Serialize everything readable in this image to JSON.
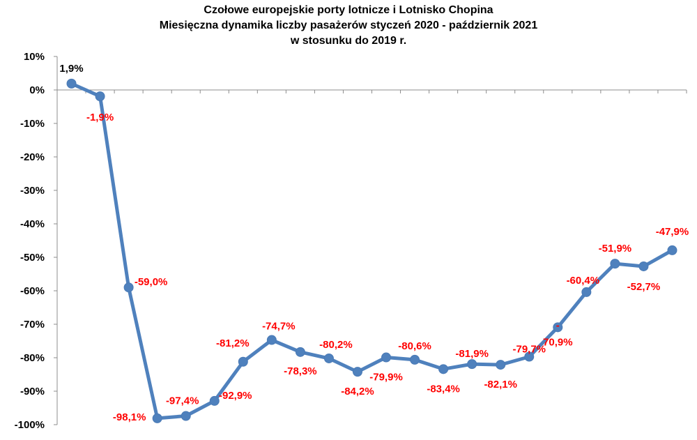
{
  "chart_data": {
    "type": "line",
    "title_lines": [
      "Czołowe europejskie porty lotnicze i Lotnisko Chopina",
      "Miesięczna dynamika liczby pasażerów styczeń 2020 - październik 2021",
      "w stosunku do 2019 r."
    ],
    "ylim": [
      -100,
      10
    ],
    "y_ticks": [
      10,
      0,
      -10,
      -20,
      -30,
      -40,
      -50,
      -60,
      -70,
      -80,
      -90,
      -100
    ],
    "y_tick_labels": [
      "10%",
      "0%",
      "-10%",
      "-20%",
      "-30%",
      "-40%",
      "-50%",
      "-60%",
      "-70%",
      "-80%",
      "-90%",
      "-100%"
    ],
    "grid": false,
    "series": [
      {
        "values": [
          1.9,
          -1.9,
          -59.0,
          -98.1,
          -97.4,
          -92.9,
          -81.2,
          -74.7,
          -78.3,
          -80.2,
          -84.2,
          -79.9,
          -80.6,
          -83.4,
          -81.9,
          -82.1,
          -79.7,
          -70.9,
          -60.4,
          -51.9,
          -52.7,
          -47.9
        ],
        "data_labels": [
          "1,9%",
          "-1,9%",
          "-59,0%",
          "-98,1%",
          "-97,4%",
          "-92,9%",
          "-81,2%",
          "-74,7%",
          "-78,3%",
          "-80,2%",
          "-84,2%",
          "-79,9%",
          "-80,6%",
          "-83,4%",
          "-81,9%",
          "-82,1%",
          "-79,7%",
          "-\n70,9%",
          "-60,4%",
          "-51,9%",
          "-52,7%",
          "-47,9%"
        ]
      }
    ],
    "colors": {
      "line": "#4f81bd",
      "marker": "#4f81bd",
      "label": "#ff0000",
      "first_label": "#000000",
      "axis": "#8c8c8c"
    }
  }
}
